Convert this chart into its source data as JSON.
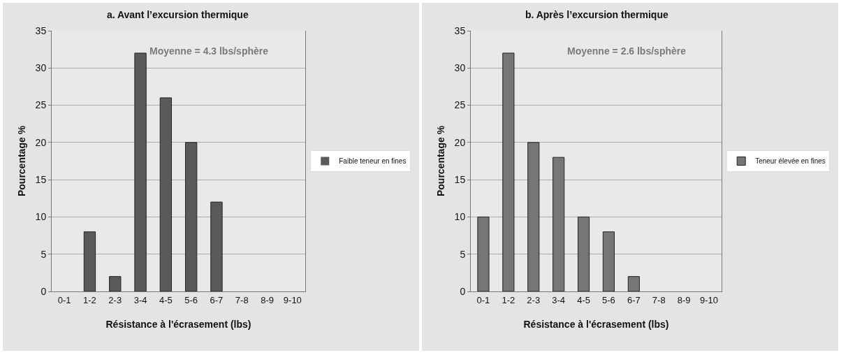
{
  "chart_data": [
    {
      "type": "bar",
      "title": "a. Avant l’excursion thermique",
      "xlabel": "Résistance à l'écrasement (lbs)",
      "ylabel": "Pourcentage %",
      "annotations": [
        "Moyenne = 4.3 lbs/sphère"
      ],
      "categories": [
        "0-1",
        "1-2",
        "2-3",
        "3-4",
        "4-5",
        "5-6",
        "6-7",
        "7-8",
        "8-9",
        "9-10"
      ],
      "series": [
        {
          "name": "Faible teneur en fines",
          "color": "#5a5a5a",
          "values": [
            0,
            8,
            2,
            32,
            26,
            20,
            12,
            0,
            0,
            0
          ]
        }
      ],
      "ylim": [
        0,
        35
      ],
      "yticks": [
        0,
        5,
        10,
        15,
        20,
        25,
        30,
        35
      ],
      "grid": "y",
      "legend": "right"
    },
    {
      "type": "bar",
      "title": "b. Après l’excursion thermique",
      "xlabel": "Résistance à l'écrasement (lbs)",
      "ylabel": "Pourcentage %",
      "annotations": [
        "Moyenne = 2.6 lbs/sphère"
      ],
      "categories": [
        "0-1",
        "1-2",
        "2-3",
        "3-4",
        "4-5",
        "5-6",
        "6-7",
        "7-8",
        "8-9",
        "9-10"
      ],
      "series": [
        {
          "name": "Teneur élevée en fines",
          "color": "#767676",
          "values": [
            10,
            32,
            20,
            18,
            10,
            8,
            2,
            0,
            0,
            0
          ]
        }
      ],
      "ylim": [
        0,
        35
      ],
      "yticks": [
        0,
        5,
        10,
        15,
        20,
        25,
        30,
        35
      ],
      "grid": "y",
      "legend": "right"
    }
  ]
}
